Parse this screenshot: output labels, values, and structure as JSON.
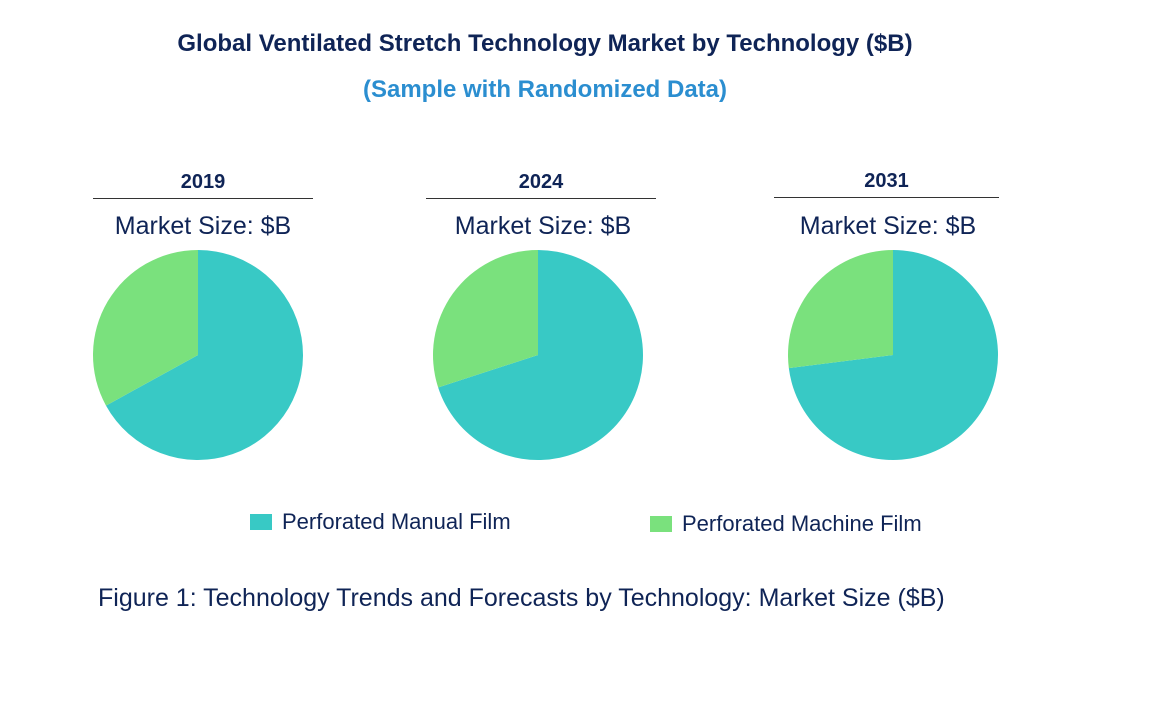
{
  "chart_data": {
    "type": "pie",
    "title": "Global Ventilated Stretch Technology Market by Technology ($B)",
    "subtitle": "(Sample with Randomized Data)",
    "caption": "Figure 1: Technology Trends and Forecasts by Technology: Market Size ($B)",
    "legend_position": "bottom",
    "series_names": [
      "Perforated Manual Film",
      "Perforated Machine Film"
    ],
    "colors": [
      "#38c9c5",
      "#7ae17d"
    ],
    "pies": [
      {
        "year": "2019",
        "label": "Market Size: $B",
        "values": [
          67,
          33
        ]
      },
      {
        "year": "2024",
        "label": "Market Size: $B",
        "values": [
          70,
          30
        ]
      },
      {
        "year": "2031",
        "label": "Market Size: $B",
        "values": [
          73,
          27
        ]
      }
    ]
  }
}
